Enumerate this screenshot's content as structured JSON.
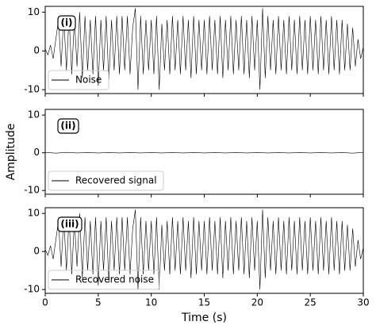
{
  "chart_data": [
    {
      "type": "line",
      "annotation": "(i)",
      "xlim": [
        0,
        30
      ],
      "xticks": [
        0,
        5,
        10,
        15,
        20,
        25,
        30
      ],
      "ylim": [
        -11,
        11.5
      ],
      "yticks": [
        -10,
        0,
        10
      ],
      "x": [
        0,
        0.25,
        0.5,
        0.75,
        1,
        1.25,
        1.5,
        1.75,
        2,
        2.25,
        2.5,
        2.75,
        3,
        3.25,
        3.5,
        3.75,
        4,
        4.25,
        4.5,
        4.75,
        5,
        5.25,
        5.5,
        5.75,
        6,
        6.25,
        6.5,
        6.75,
        7,
        7.25,
        7.5,
        7.75,
        8,
        8.25,
        8.5,
        8.75,
        9,
        9.25,
        9.5,
        9.75,
        10,
        10.25,
        10.5,
        10.75,
        11,
        11.25,
        11.5,
        11.75,
        12,
        12.25,
        12.5,
        12.75,
        13,
        13.25,
        13.5,
        13.75,
        14,
        14.25,
        14.5,
        14.75,
        15,
        15.25,
        15.5,
        15.75,
        16,
        16.25,
        16.5,
        16.75,
        17,
        17.25,
        17.5,
        17.75,
        18,
        18.25,
        18.5,
        18.75,
        19,
        19.25,
        19.5,
        19.75,
        20,
        20.25,
        20.5,
        20.75,
        21,
        21.25,
        21.5,
        21.75,
        22,
        22.25,
        22.5,
        22.75,
        23,
        23.25,
        23.5,
        23.75,
        24,
        24.25,
        24.5,
        24.75,
        25,
        25.25,
        25.5,
        25.75,
        26,
        26.25,
        26.5,
        26.75,
        27,
        27.25,
        27.5,
        27.75,
        28,
        28.25,
        28.5,
        28.75,
        29,
        29.25,
        29.5,
        29.75,
        30
      ],
      "series": [
        {
          "name": "Noise",
          "color": "#000000",
          "values": [
            0.5,
            -1,
            1.5,
            -2,
            3,
            8,
            -4,
            9,
            -5,
            9,
            -6,
            8,
            -4,
            10,
            -7,
            9,
            -5,
            8,
            -6,
            9,
            -9,
            8,
            -5,
            9,
            -8,
            8,
            -5,
            9,
            -6,
            9,
            -5,
            9,
            -6,
            6,
            11,
            -10,
            9,
            -6,
            8,
            -5,
            8,
            -6,
            9,
            -10,
            7,
            -5,
            8,
            -6,
            9,
            -5,
            8,
            -6,
            9,
            -5,
            8,
            -7,
            9,
            -6,
            8,
            -5,
            8,
            -6,
            9,
            -5,
            8,
            -6,
            9,
            -7,
            8,
            -5,
            9,
            -6,
            8,
            -5,
            9,
            -6,
            8,
            -7,
            9,
            -5,
            8,
            -10,
            11,
            -7,
            9,
            -5,
            8,
            -6,
            9,
            -5,
            8,
            -6,
            9,
            -5,
            8,
            -6,
            9,
            -5,
            8,
            -6,
            9,
            -5,
            8,
            -6,
            9,
            -5,
            8,
            -6,
            9,
            -5,
            8,
            -6,
            8,
            -5,
            7,
            -5,
            6,
            -4,
            3,
            -2,
            1
          ]
        }
      ]
    },
    {
      "type": "line",
      "annotation": "(ii)",
      "ylabel": "Amplitude",
      "xlim": [
        0,
        30
      ],
      "xticks": [
        0,
        5,
        10,
        15,
        20,
        25,
        30
      ],
      "ylim": [
        -11,
        11.5
      ],
      "yticks": [
        -10,
        0,
        10
      ],
      "x": [
        0,
        1,
        2,
        3,
        4,
        5,
        6,
        7,
        8,
        9,
        10,
        11,
        12,
        13,
        14,
        15,
        16,
        17,
        18,
        19,
        20,
        21,
        22,
        23,
        24,
        25,
        26,
        27,
        28,
        29,
        30
      ],
      "series": [
        {
          "name": "Recovered signal",
          "color": "#000000",
          "values": [
            0.1,
            -0.1,
            0.1,
            -0.05,
            0.05,
            -0.05,
            0.05,
            -0.05,
            0.05,
            -0.05,
            0.05,
            -0.05,
            0.05,
            -0.05,
            0.05,
            -0.05,
            0.05,
            -0.05,
            0.05,
            -0.05,
            0.05,
            -0.05,
            0.05,
            -0.05,
            0.05,
            -0.05,
            0.05,
            -0.05,
            0.05,
            -0.1,
            0.1
          ]
        }
      ]
    },
    {
      "type": "line",
      "annotation": "(iii)",
      "xlabel": "Time (s)",
      "xlim": [
        0,
        30
      ],
      "xticks": [
        0,
        5,
        10,
        15,
        20,
        25,
        30
      ],
      "ylim": [
        -11,
        11.5
      ],
      "yticks": [
        -10,
        0,
        10
      ],
      "x": [
        0,
        0.25,
        0.5,
        0.75,
        1,
        1.25,
        1.5,
        1.75,
        2,
        2.25,
        2.5,
        2.75,
        3,
        3.25,
        3.5,
        3.75,
        4,
        4.25,
        4.5,
        4.75,
        5,
        5.25,
        5.5,
        5.75,
        6,
        6.25,
        6.5,
        6.75,
        7,
        7.25,
        7.5,
        7.75,
        8,
        8.25,
        8.5,
        8.75,
        9,
        9.25,
        9.5,
        9.75,
        10,
        10.25,
        10.5,
        10.75,
        11,
        11.25,
        11.5,
        11.75,
        12,
        12.25,
        12.5,
        12.75,
        13,
        13.25,
        13.5,
        13.75,
        14,
        14.25,
        14.5,
        14.75,
        15,
        15.25,
        15.5,
        15.75,
        16,
        16.25,
        16.5,
        16.75,
        17,
        17.25,
        17.5,
        17.75,
        18,
        18.25,
        18.5,
        18.75,
        19,
        19.25,
        19.5,
        19.75,
        20,
        20.25,
        20.5,
        20.75,
        21,
        21.25,
        21.5,
        21.75,
        22,
        22.25,
        22.5,
        22.75,
        23,
        23.25,
        23.5,
        23.75,
        24,
        24.25,
        24.5,
        24.75,
        25,
        25.25,
        25.5,
        25.75,
        26,
        26.25,
        26.5,
        26.75,
        27,
        27.25,
        27.5,
        27.75,
        28,
        28.25,
        28.5,
        28.75,
        29,
        29.25,
        29.5,
        29.75,
        30
      ],
      "series": [
        {
          "name": "Recovered noise",
          "color": "#000000",
          "values": [
            0.5,
            -1,
            1.5,
            -2,
            3,
            8,
            -4,
            9,
            -5,
            9,
            -6,
            8,
            -4,
            10,
            -7,
            9,
            -5,
            8,
            -6,
            9,
            -9,
            8,
            -5,
            9,
            -8,
            8,
            -5,
            9,
            -6,
            9,
            -5,
            9,
            -6,
            6,
            11,
            -10,
            9,
            -6,
            8,
            -5,
            8,
            -6,
            9,
            -10,
            7,
            -5,
            8,
            -6,
            9,
            -5,
            8,
            -6,
            9,
            -5,
            8,
            -7,
            9,
            -6,
            8,
            -5,
            8,
            -6,
            9,
            -5,
            8,
            -6,
            9,
            -7,
            8,
            -5,
            9,
            -6,
            8,
            -5,
            9,
            -6,
            8,
            -7,
            9,
            -5,
            8,
            -10,
            11,
            -7,
            9,
            -5,
            8,
            -6,
            9,
            -5,
            8,
            -6,
            9,
            -5,
            8,
            -6,
            9,
            -5,
            8,
            -6,
            9,
            -5,
            8,
            -6,
            9,
            -5,
            8,
            -6,
            9,
            -5,
            8,
            -6,
            8,
            -5,
            7,
            -5,
            6,
            -4,
            3,
            -2,
            1
          ]
        }
      ]
    }
  ]
}
